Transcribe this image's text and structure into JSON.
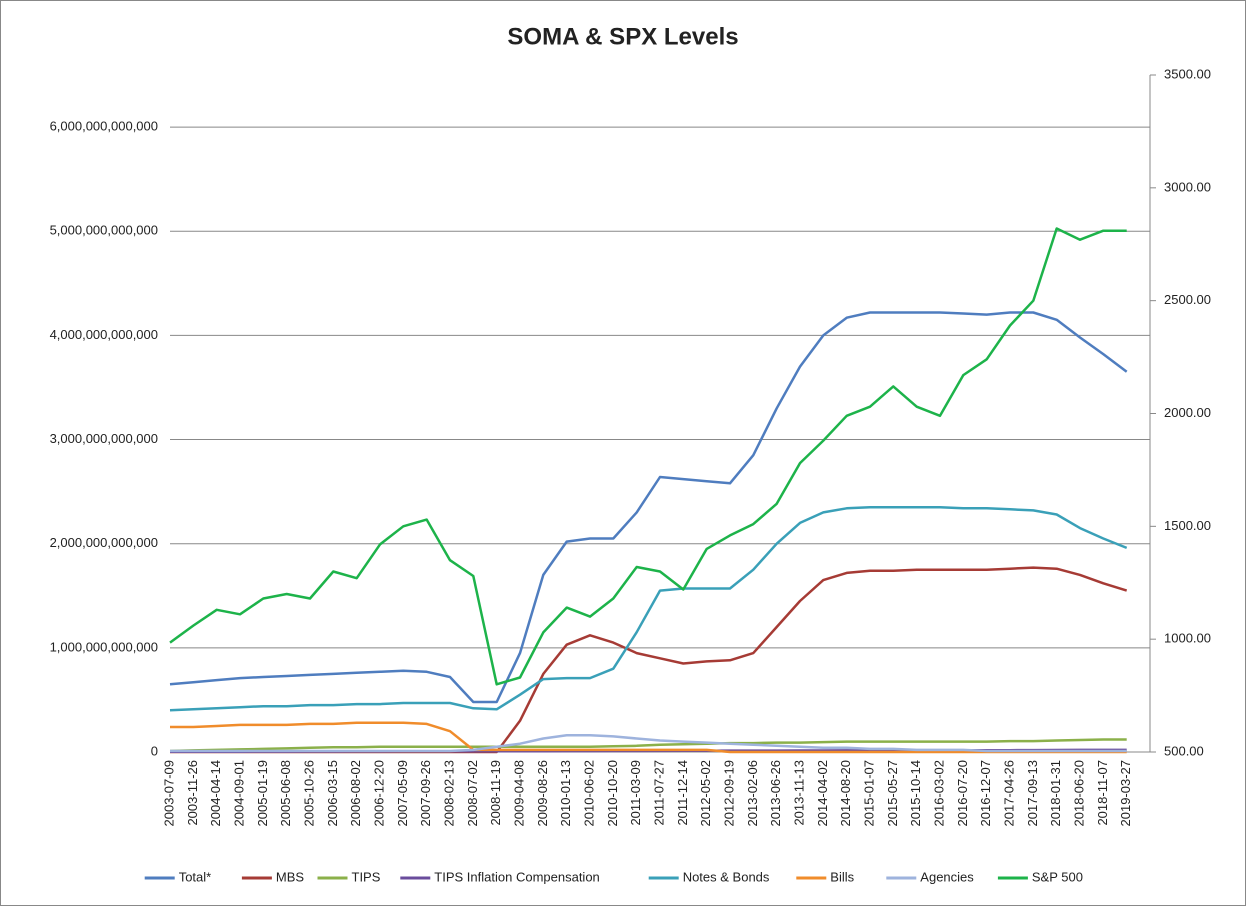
{
  "chart_data": {
    "type": "line",
    "title": "SOMA & SPX Levels",
    "categories": [
      "2003-07-09",
      "2003-11-26",
      "2004-04-14",
      "2004-09-01",
      "2005-01-19",
      "2005-06-08",
      "2005-10-26",
      "2006-03-15",
      "2006-08-02",
      "2006-12-20",
      "2007-05-09",
      "2007-09-26",
      "2008-02-13",
      "2008-07-02",
      "2008-11-19",
      "2009-04-08",
      "2009-08-26",
      "2010-01-13",
      "2010-06-02",
      "2010-10-20",
      "2011-03-09",
      "2011-07-27",
      "2011-12-14",
      "2012-05-02",
      "2012-09-19",
      "2013-02-06",
      "2013-06-26",
      "2013-11-13",
      "2014-04-02",
      "2014-08-20",
      "2015-01-07",
      "2015-05-27",
      "2015-10-14",
      "2016-03-02",
      "2016-07-20",
      "2016-12-07",
      "2017-04-26",
      "2017-09-13",
      "2018-01-31",
      "2018-06-20",
      "2018-11-07",
      "2019-03-27"
    ],
    "ylim": [
      0,
      6500000000000.0
    ],
    "yticks": [
      0,
      {
        "value": 1000000000000.0,
        "label": "1,000,000,000,000"
      },
      {
        "value": 2000000000000.0,
        "label": "2,000,000,000,000"
      },
      {
        "value": 3000000000000.0,
        "label": "3,000,000,000,000"
      },
      {
        "value": 4000000000000.0,
        "label": "4,000,000,000,000"
      },
      {
        "value": 5000000000000.0,
        "label": "5,000,000,000,000"
      },
      {
        "value": 6000000000000.0,
        "label": "6,000,000,000,000"
      }
    ],
    "y2lim": [
      500,
      3500
    ],
    "y2ticks": [
      {
        "value": 500,
        "label": "500.00"
      },
      {
        "value": 1000,
        "label": "1000.00"
      },
      {
        "value": 1500,
        "label": "1500.00"
      },
      {
        "value": 2000,
        "label": "2000.00"
      },
      {
        "value": 2500,
        "label": "2500.00"
      },
      {
        "value": 3000,
        "label": "3000.00"
      },
      {
        "value": 3500,
        "label": "3500.00"
      }
    ],
    "grid": true,
    "legend": "bottom",
    "series": [
      {
        "name": "Total*",
        "color": "#4f7dbf",
        "values": [
          650000000000.0,
          670000000000.0,
          690000000000.0,
          710000000000.0,
          720000000000.0,
          730000000000.0,
          740000000000.0,
          750000000000.0,
          760000000000.0,
          770000000000.0,
          780000000000.0,
          770000000000.0,
          720000000000.0,
          480000000000.0,
          480000000000.0,
          950000000000.0,
          1700000000000.0,
          2020000000000.0,
          2050000000000.0,
          2050000000000.0,
          2300000000000.0,
          2640000000000.0,
          2620000000000.0,
          2600000000000.0,
          2580000000000.0,
          2850000000000.0,
          3300000000000.0,
          3700000000000.0,
          4000000000000.0,
          4170000000000.0,
          4220000000000.0,
          4220000000000.0,
          4220000000000.0,
          4220000000000.0,
          4210000000000.0,
          4200000000000.0,
          4220000000000.0,
          4220000000000.0,
          4150000000000.0,
          3980000000000.0,
          3820000000000.0,
          3650000000000.0
        ]
      },
      {
        "name": "MBS",
        "color": "#a63b35",
        "values": [
          0,
          0,
          0,
          0,
          0,
          0,
          0,
          0,
          0,
          0,
          0,
          0,
          0,
          0,
          0,
          300000000000.0,
          750000000000.0,
          1030000000000.0,
          1120000000000.0,
          1050000000000.0,
          950000000000.0,
          900000000000.0,
          850000000000.0,
          870000000000.0,
          880000000000.0,
          950000000000.0,
          1200000000000.0,
          1450000000000.0,
          1650000000000.0,
          1720000000000.0,
          1740000000000.0,
          1740000000000.0,
          1750000000000.0,
          1750000000000.0,
          1750000000000.0,
          1750000000000.0,
          1760000000000.0,
          1770000000000.0,
          1760000000000.0,
          1700000000000.0,
          1620000000000.0,
          1550000000000.0
        ]
      },
      {
        "name": "TIPS",
        "color": "#8bb04a",
        "values": [
          10000000000.0,
          15000000000.0,
          20000000000.0,
          25000000000.0,
          30000000000.0,
          35000000000.0,
          40000000000.0,
          45000000000.0,
          45000000000.0,
          50000000000.0,
          50000000000.0,
          50000000000.0,
          50000000000.0,
          50000000000.0,
          50000000000.0,
          50000000000.0,
          50000000000.0,
          50000000000.0,
          50000000000.0,
          55000000000.0,
          60000000000.0,
          70000000000.0,
          75000000000.0,
          80000000000.0,
          85000000000.0,
          85000000000.0,
          90000000000.0,
          90000000000.0,
          95000000000.0,
          100000000000.0,
          100000000000.0,
          100000000000.0,
          100000000000.0,
          100000000000.0,
          100000000000.0,
          100000000000.0,
          105000000000.0,
          105000000000.0,
          110000000000.0,
          115000000000.0,
          120000000000.0,
          120000000000.0
        ]
      },
      {
        "name": "TIPS Inflation Compensation",
        "color": "#6a4c9c",
        "values": [
          2000000000.0,
          2000000000.0,
          3000000000.0,
          3000000000.0,
          4000000000.0,
          4000000000.0,
          5000000000.0,
          5000000000.0,
          6000000000.0,
          6000000000.0,
          7000000000.0,
          7000000000.0,
          8000000000.0,
          8000000000.0,
          8000000000.0,
          8000000000.0,
          8000000000.0,
          9000000000.0,
          9000000000.0,
          10000000000.0,
          10000000000.0,
          11000000000.0,
          12000000000.0,
          12000000000.0,
          13000000000.0,
          13000000000.0,
          13000000000.0,
          14000000000.0,
          14000000000.0,
          15000000000.0,
          15000000000.0,
          15000000000.0,
          15000000000.0,
          15000000000.0,
          16000000000.0,
          16000000000.0,
          17000000000.0,
          18000000000.0,
          19000000000.0,
          20000000000.0,
          20000000000.0,
          20000000000.0
        ]
      },
      {
        "name": "Notes & Bonds",
        "color": "#3aa0b8",
        "values": [
          400000000000.0,
          410000000000.0,
          420000000000.0,
          430000000000.0,
          440000000000.0,
          440000000000.0,
          450000000000.0,
          450000000000.0,
          460000000000.0,
          460000000000.0,
          470000000000.0,
          470000000000.0,
          470000000000.0,
          420000000000.0,
          410000000000.0,
          550000000000.0,
          700000000000.0,
          710000000000.0,
          710000000000.0,
          800000000000.0,
          1150000000000.0,
          1550000000000.0,
          1570000000000.0,
          1570000000000.0,
          1570000000000.0,
          1750000000000.0,
          2000000000000.0,
          2200000000000.0,
          2300000000000.0,
          2340000000000.0,
          2350000000000.0,
          2350000000000.0,
          2350000000000.0,
          2350000000000.0,
          2340000000000.0,
          2340000000000.0,
          2330000000000.0,
          2320000000000.0,
          2280000000000.0,
          2150000000000.0,
          2050000000000.0,
          1960000000000.0
        ]
      },
      {
        "name": "Bills",
        "color": "#f08c2b",
        "values": [
          240000000000.0,
          240000000000.0,
          250000000000.0,
          260000000000.0,
          260000000000.0,
          260000000000.0,
          270000000000.0,
          270000000000.0,
          280000000000.0,
          280000000000.0,
          280000000000.0,
          270000000000.0,
          200000000000.0,
          20000000000.0,
          20000000000.0,
          20000000000.0,
          20000000000.0,
          20000000000.0,
          20000000000.0,
          20000000000.0,
          20000000000.0,
          20000000000.0,
          20000000000.0,
          20000000000.0,
          0,
          0,
          0,
          0,
          0,
          0,
          0,
          0,
          0,
          0,
          0,
          0,
          0,
          0,
          0,
          0,
          0,
          0
        ]
      },
      {
        "name": "Agencies",
        "color": "#9eb3dd",
        "values": [
          10000000000.0,
          10000000000.0,
          10000000000.0,
          10000000000.0,
          10000000000.0,
          10000000000.0,
          10000000000.0,
          10000000000.0,
          10000000000.0,
          10000000000.0,
          10000000000.0,
          10000000000.0,
          10000000000.0,
          20000000000.0,
          50000000000.0,
          80000000000.0,
          130000000000.0,
          160000000000.0,
          160000000000.0,
          150000000000.0,
          130000000000.0,
          110000000000.0,
          100000000000.0,
          90000000000.0,
          80000000000.0,
          70000000000.0,
          60000000000.0,
          50000000000.0,
          40000000000.0,
          40000000000.0,
          30000000000.0,
          30000000000.0,
          20000000000.0,
          20000000000.0,
          20000000000.0,
          10000000000.0,
          10000000000.0,
          10000000000.0,
          10000000000.0,
          10000000000.0,
          10000000000.0,
          10000000000.0
        ]
      },
      {
        "name": "S&P 500",
        "color": "#1db34a",
        "axis": "y2",
        "values": [
          985,
          1060,
          1130,
          1110,
          1180,
          1200,
          1180,
          1300,
          1270,
          1420,
          1500,
          1530,
          1350,
          1280,
          800,
          830,
          1030,
          1140,
          1100,
          1180,
          1320,
          1300,
          1220,
          1400,
          1460,
          1510,
          1600,
          1780,
          1880,
          1990,
          2030,
          2120,
          2030,
          1990,
          2170,
          2240,
          2390,
          2500,
          2820,
          2770,
          2810,
          2810
        ]
      }
    ]
  }
}
